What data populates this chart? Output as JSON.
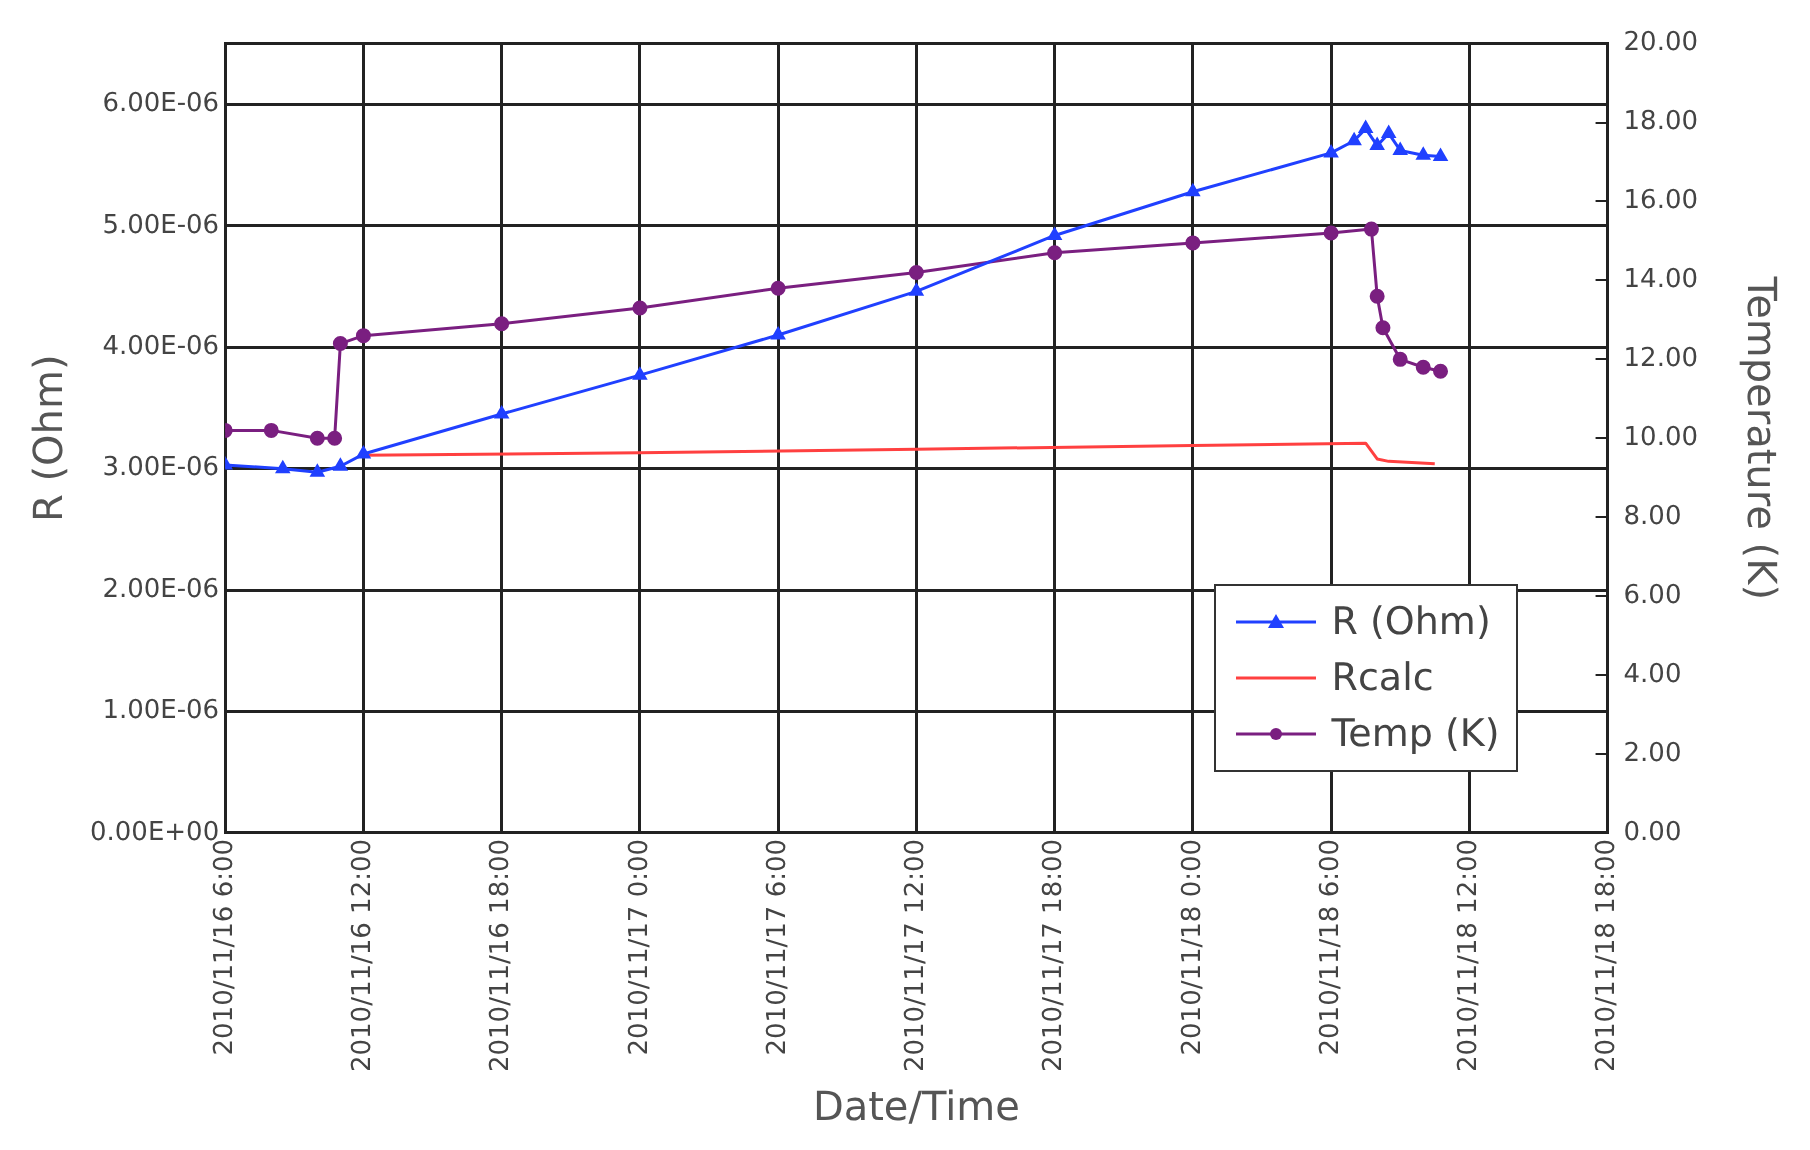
{
  "chart_data": {
    "type": "line",
    "xlabel": "Date/Time",
    "ylabel": "R (Ohm)",
    "y2label": "Temperature (K)",
    "xlim": [
      "2010-11-16T06:00",
      "2010-11-18T18:00"
    ],
    "xticks": [
      {
        "value": "2010-11-16T06:00",
        "label": "2010/11/16 6:00"
      },
      {
        "value": "2010-11-16T12:00",
        "label": "2010/11/16 12:00"
      },
      {
        "value": "2010-11-16T18:00",
        "label": "2010/11/16 18:00"
      },
      {
        "value": "2010-11-17T00:00",
        "label": "2010/11/17 0:00"
      },
      {
        "value": "2010-11-17T06:00",
        "label": "2010/11/17 6:00"
      },
      {
        "value": "2010-11-17T12:00",
        "label": "2010/11/17 12:00"
      },
      {
        "value": "2010-11-17T18:00",
        "label": "2010/11/17 18:00"
      },
      {
        "value": "2010-11-18T00:00",
        "label": "2010/11/18 0:00"
      },
      {
        "value": "2010-11-18T06:00",
        "label": "2010/11/18 6:00"
      },
      {
        "value": "2010-11-18T12:00",
        "label": "2010/11/18 12:00"
      },
      {
        "value": "2010-11-18T18:00",
        "label": "2010/11/18 18:00"
      }
    ],
    "ylim": [
      0,
      6.5e-06
    ],
    "yticks": [
      {
        "value": 0,
        "label": "0.00E+00"
      },
      {
        "value": 1e-06,
        "label": "1.00E-06"
      },
      {
        "value": 2e-06,
        "label": "2.00E-06"
      },
      {
        "value": 3e-06,
        "label": "3.00E-06"
      },
      {
        "value": 4e-06,
        "label": "4.00E-06"
      },
      {
        "value": 5e-06,
        "label": "5.00E-06"
      },
      {
        "value": 6e-06,
        "label": "6.00E-06"
      }
    ],
    "y2lim": [
      0,
      20
    ],
    "y2ticks": [
      {
        "value": 0,
        "label": "0.00"
      },
      {
        "value": 2,
        "label": "2.00"
      },
      {
        "value": 4,
        "label": "4.00"
      },
      {
        "value": 6,
        "label": "6.00"
      },
      {
        "value": 8,
        "label": "8.00"
      },
      {
        "value": 10,
        "label": "10.00"
      },
      {
        "value": 12,
        "label": "12.00"
      },
      {
        "value": 14,
        "label": "14.00"
      },
      {
        "value": 16,
        "label": "16.00"
      },
      {
        "value": 18,
        "label": "18.00"
      },
      {
        "value": 20,
        "label": "20.00"
      }
    ],
    "grid": true,
    "legend": "bottom right",
    "series": [
      {
        "name": "R (Ohm)",
        "color": "#2040ff",
        "marker": "triangle",
        "x": [
          "2010-11-16T06:00",
          "2010-11-16T08:30",
          "2010-11-16T10:00",
          "2010-11-16T11:00",
          "2010-11-16T12:00",
          "2010-11-16T18:00",
          "2010-11-17T00:00",
          "2010-11-17T06:00",
          "2010-11-17T12:00",
          "2010-11-17T18:00",
          "2010-11-18T00:00",
          "2010-11-18T06:00",
          "2010-11-18T07:00",
          "2010-11-18T07:30",
          "2010-11-18T08:00",
          "2010-11-18T08:30",
          "2010-11-18T09:00",
          "2010-11-18T10:00",
          "2010-11-18T10:45"
        ],
        "values": [
          3.03e-06,
          3e-06,
          2.97e-06,
          3.02e-06,
          3.12e-06,
          3.45e-06,
          3.77e-06,
          4.1e-06,
          4.46e-06,
          4.92e-06,
          5.28e-06,
          5.6e-06,
          5.7e-06,
          5.8e-06,
          5.66e-06,
          5.76e-06,
          5.62e-06,
          5.58e-06,
          5.57e-06
        ]
      },
      {
        "name": "Rcalc",
        "color": "#ff4040",
        "marker": "none",
        "x": [
          "2010-11-16T12:00",
          "2010-11-17T00:00",
          "2010-11-17T12:00",
          "2010-11-18T00:00",
          "2010-11-18T07:30",
          "2010-11-18T08:00",
          "2010-11-18T08:30",
          "2010-11-18T10:30"
        ],
        "values": [
          3.11e-06,
          3.13e-06,
          3.16e-06,
          3.19e-06,
          3.21e-06,
          3.08e-06,
          3.06e-06,
          3.04e-06
        ]
      },
      {
        "name": "Temp (K)",
        "color": "#7a1f80",
        "marker": "circle",
        "axis": "y2",
        "x": [
          "2010-11-16T06:00",
          "2010-11-16T08:00",
          "2010-11-16T10:00",
          "2010-11-16T10:45",
          "2010-11-16T11:00",
          "2010-11-16T12:00",
          "2010-11-16T18:00",
          "2010-11-17T00:00",
          "2010-11-17T06:00",
          "2010-11-17T12:00",
          "2010-11-17T18:00",
          "2010-11-18T00:00",
          "2010-11-18T06:00",
          "2010-11-18T07:45",
          "2010-11-18T08:00",
          "2010-11-18T08:15",
          "2010-11-18T09:00",
          "2010-11-18T10:00",
          "2010-11-18T10:45"
        ],
        "values": [
          10.2,
          10.2,
          10.0,
          10.0,
          12.4,
          12.6,
          12.9,
          13.3,
          13.8,
          14.2,
          14.7,
          14.95,
          15.2,
          15.3,
          13.6,
          12.8,
          12.0,
          11.8,
          11.7
        ]
      }
    ]
  }
}
